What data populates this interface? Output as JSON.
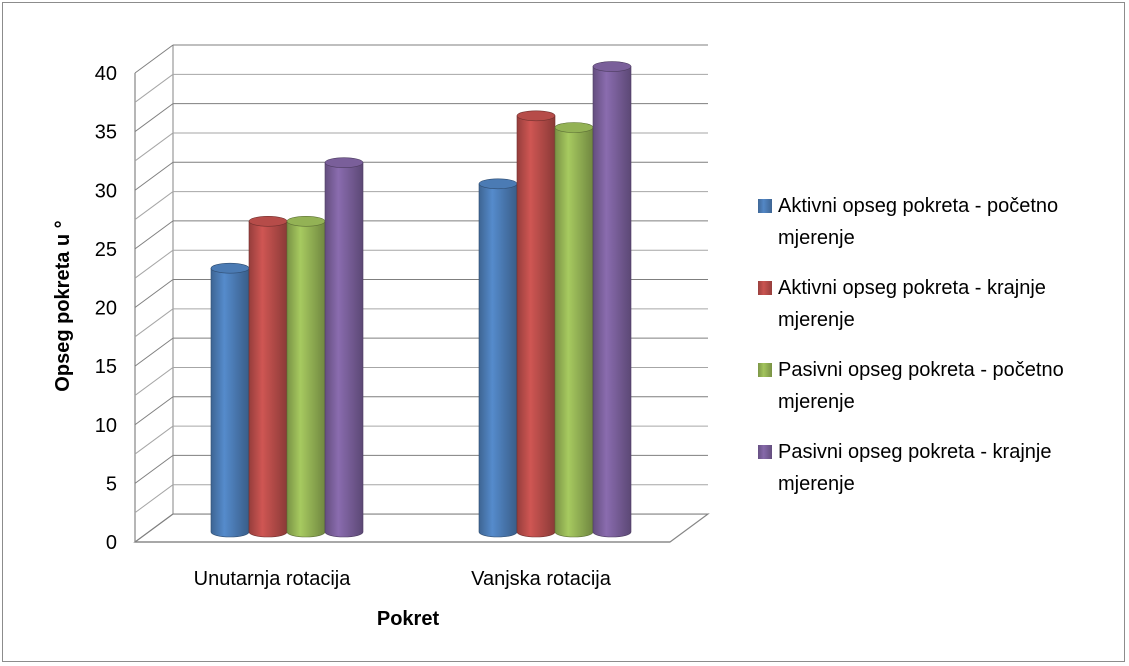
{
  "chart_data": {
    "type": "bar",
    "title": "",
    "xlabel": "Pokret",
    "ylabel": "Opseg pokreta u °",
    "ylim": [
      0,
      40
    ],
    "yticks": [
      "0",
      "5",
      "10",
      "15",
      "20",
      "25",
      "30",
      "35",
      "40"
    ],
    "categories": [
      "Unutarnja rotacija",
      "Vanjska rotacija"
    ],
    "series": [
      {
        "name": "Aktivni opseg pokreta - početno mjerenje",
        "values": [
          22.5,
          29.7
        ],
        "color": "#4f81bd"
      },
      {
        "name": "Aktivni opseg pokreta - krajnje mjerenje",
        "values": [
          26.5,
          35.5
        ],
        "color": "#c0504d"
      },
      {
        "name": "Pasivni opseg pokreta - početno mjerenje",
        "values": [
          26.5,
          34.5
        ],
        "color": "#9bbb59"
      },
      {
        "name": "Pasivni opseg pokreta - krajnje mjerenje",
        "values": [
          31.5,
          39.7
        ],
        "color": "#8064a2"
      }
    ],
    "grid": true,
    "legend_position": "right",
    "style": "3d-cylinder"
  }
}
